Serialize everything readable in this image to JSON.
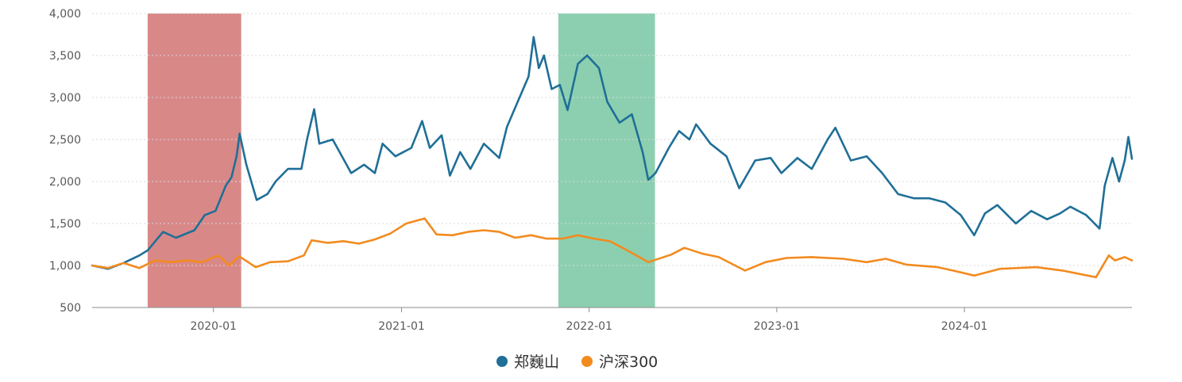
{
  "chart_data": {
    "type": "line",
    "title": "",
    "xlabel": "",
    "ylabel": "",
    "x_range": [
      "2019-05-10",
      "2024-11-22"
    ],
    "ylim": [
      500,
      4000
    ],
    "y_ticks": [
      500,
      1000,
      1500,
      2000,
      2500,
      3000,
      3500,
      4000
    ],
    "y_tick_labels": [
      "500",
      "1,000",
      "1,500",
      "2,000",
      "2,500",
      "3,000",
      "3,500",
      "4,000"
    ],
    "x_ticks": [
      "2020-01",
      "2021-01",
      "2022-01",
      "2023-01",
      "2024-01"
    ],
    "grid": "horizontal-dotted",
    "legend": {
      "position": "bottom-center"
    },
    "highlight_bands": [
      {
        "start": "2019-08-26",
        "end": "2020-02-24",
        "color": "#d98888"
      },
      {
        "start": "2021-11-02",
        "end": "2022-05-09",
        "color": "#8ccfb0"
      }
    ],
    "series": [
      {
        "name": "郑巍山",
        "color": "#1f6f97",
        "points": [
          [
            "2019-05-10",
            1000
          ],
          [
            "2019-06-10",
            960
          ],
          [
            "2019-07-10",
            1030
          ],
          [
            "2019-08-10",
            1120
          ],
          [
            "2019-08-26",
            1180
          ],
          [
            "2019-09-25",
            1400
          ],
          [
            "2019-10-20",
            1330
          ],
          [
            "2019-11-25",
            1420
          ],
          [
            "2019-12-15",
            1600
          ],
          [
            "2020-01-05",
            1650
          ],
          [
            "2020-01-25",
            1950
          ],
          [
            "2020-02-05",
            2050
          ],
          [
            "2020-02-15",
            2300
          ],
          [
            "2020-02-21",
            2570
          ],
          [
            "2020-03-05",
            2200
          ],
          [
            "2020-03-25",
            1780
          ],
          [
            "2020-04-15",
            1850
          ],
          [
            "2020-05-01",
            2000
          ],
          [
            "2020-05-25",
            2150
          ],
          [
            "2020-06-20",
            2150
          ],
          [
            "2020-07-01",
            2500
          ],
          [
            "2020-07-15",
            2860
          ],
          [
            "2020-07-25",
            2450
          ],
          [
            "2020-08-20",
            2500
          ],
          [
            "2020-09-25",
            2100
          ],
          [
            "2020-10-20",
            2200
          ],
          [
            "2020-11-10",
            2100
          ],
          [
            "2020-11-25",
            2450
          ],
          [
            "2020-12-20",
            2300
          ],
          [
            "2021-01-20",
            2400
          ],
          [
            "2021-02-10",
            2720
          ],
          [
            "2021-02-25",
            2400
          ],
          [
            "2021-03-20",
            2550
          ],
          [
            "2021-04-05",
            2070
          ],
          [
            "2021-04-25",
            2350
          ],
          [
            "2021-05-15",
            2150
          ],
          [
            "2021-06-10",
            2450
          ],
          [
            "2021-07-10",
            2280
          ],
          [
            "2021-07-25",
            2650
          ],
          [
            "2021-08-15",
            2950
          ],
          [
            "2021-09-05",
            3250
          ],
          [
            "2021-09-15",
            3720
          ],
          [
            "2021-09-25",
            3350
          ],
          [
            "2021-10-05",
            3500
          ],
          [
            "2021-10-20",
            3100
          ],
          [
            "2021-11-05",
            3150
          ],
          [
            "2021-11-20",
            2850
          ],
          [
            "2021-12-10",
            3400
          ],
          [
            "2021-12-28",
            3500
          ],
          [
            "2022-01-20",
            3350
          ],
          [
            "2022-02-05",
            2950
          ],
          [
            "2022-03-01",
            2700
          ],
          [
            "2022-03-25",
            2800
          ],
          [
            "2022-04-15",
            2350
          ],
          [
            "2022-04-26",
            2020
          ],
          [
            "2022-05-10",
            2100
          ],
          [
            "2022-06-05",
            2400
          ],
          [
            "2022-06-25",
            2600
          ],
          [
            "2022-07-15",
            2500
          ],
          [
            "2022-07-28",
            2680
          ],
          [
            "2022-08-25",
            2450
          ],
          [
            "2022-09-25",
            2300
          ],
          [
            "2022-10-20",
            1920
          ],
          [
            "2022-11-20",
            2250
          ],
          [
            "2022-12-20",
            2280
          ],
          [
            "2023-01-10",
            2100
          ],
          [
            "2023-02-10",
            2280
          ],
          [
            "2023-03-10",
            2150
          ],
          [
            "2023-04-10",
            2500
          ],
          [
            "2023-04-25",
            2640
          ],
          [
            "2023-05-25",
            2250
          ],
          [
            "2023-06-25",
            2300
          ],
          [
            "2023-07-25",
            2100
          ],
          [
            "2023-08-25",
            1850
          ],
          [
            "2023-09-25",
            1800
          ],
          [
            "2023-10-25",
            1800
          ],
          [
            "2023-11-25",
            1750
          ],
          [
            "2023-12-25",
            1600
          ],
          [
            "2024-01-20",
            1360
          ],
          [
            "2024-02-10",
            1620
          ],
          [
            "2024-03-05",
            1720
          ],
          [
            "2024-04-10",
            1500
          ],
          [
            "2024-05-10",
            1650
          ],
          [
            "2024-06-10",
            1550
          ],
          [
            "2024-07-05",
            1620
          ],
          [
            "2024-07-25",
            1700
          ],
          [
            "2024-08-25",
            1600
          ],
          [
            "2024-09-20",
            1440
          ],
          [
            "2024-09-30",
            1950
          ],
          [
            "2024-10-15",
            2280
          ],
          [
            "2024-10-28",
            2000
          ],
          [
            "2024-11-08",
            2250
          ],
          [
            "2024-11-15",
            2530
          ],
          [
            "2024-11-22",
            2270
          ]
        ]
      },
      {
        "name": "沪深300",
        "color": "#f28b1f",
        "points": [
          [
            "2019-05-10",
            1000
          ],
          [
            "2019-06-10",
            970
          ],
          [
            "2019-07-10",
            1030
          ],
          [
            "2019-08-10",
            970
          ],
          [
            "2019-09-10",
            1060
          ],
          [
            "2019-10-10",
            1040
          ],
          [
            "2019-11-10",
            1060
          ],
          [
            "2019-12-10",
            1040
          ],
          [
            "2020-01-10",
            1120
          ],
          [
            "2020-02-01",
            1000
          ],
          [
            "2020-02-20",
            1110
          ],
          [
            "2020-03-23",
            980
          ],
          [
            "2020-04-20",
            1040
          ],
          [
            "2020-05-25",
            1050
          ],
          [
            "2020-06-25",
            1120
          ],
          [
            "2020-07-10",
            1300
          ],
          [
            "2020-08-10",
            1270
          ],
          [
            "2020-09-10",
            1290
          ],
          [
            "2020-10-10",
            1260
          ],
          [
            "2020-11-10",
            1310
          ],
          [
            "2020-12-10",
            1380
          ],
          [
            "2021-01-10",
            1500
          ],
          [
            "2021-02-15",
            1560
          ],
          [
            "2021-03-10",
            1370
          ],
          [
            "2021-04-10",
            1360
          ],
          [
            "2021-05-10",
            1400
          ],
          [
            "2021-06-10",
            1420
          ],
          [
            "2021-07-10",
            1400
          ],
          [
            "2021-08-10",
            1330
          ],
          [
            "2021-09-10",
            1360
          ],
          [
            "2021-10-10",
            1320
          ],
          [
            "2021-11-10",
            1320
          ],
          [
            "2021-12-10",
            1360
          ],
          [
            "2022-01-10",
            1320
          ],
          [
            "2022-02-10",
            1290
          ],
          [
            "2022-03-10",
            1200
          ],
          [
            "2022-04-26",
            1040
          ],
          [
            "2022-06-10",
            1130
          ],
          [
            "2022-07-05",
            1210
          ],
          [
            "2022-08-10",
            1140
          ],
          [
            "2022-09-10",
            1100
          ],
          [
            "2022-10-31",
            940
          ],
          [
            "2022-12-10",
            1040
          ],
          [
            "2023-01-20",
            1090
          ],
          [
            "2023-03-10",
            1100
          ],
          [
            "2023-05-10",
            1080
          ],
          [
            "2023-06-25",
            1040
          ],
          [
            "2023-08-01",
            1080
          ],
          [
            "2023-09-10",
            1010
          ],
          [
            "2023-11-10",
            980
          ],
          [
            "2023-12-10",
            940
          ],
          [
            "2024-01-20",
            880
          ],
          [
            "2024-03-10",
            960
          ],
          [
            "2024-05-20",
            980
          ],
          [
            "2024-07-10",
            940
          ],
          [
            "2024-09-13",
            860
          ],
          [
            "2024-10-08",
            1120
          ],
          [
            "2024-10-20",
            1060
          ],
          [
            "2024-11-08",
            1100
          ],
          [
            "2024-11-22",
            1060
          ]
        ]
      }
    ]
  }
}
